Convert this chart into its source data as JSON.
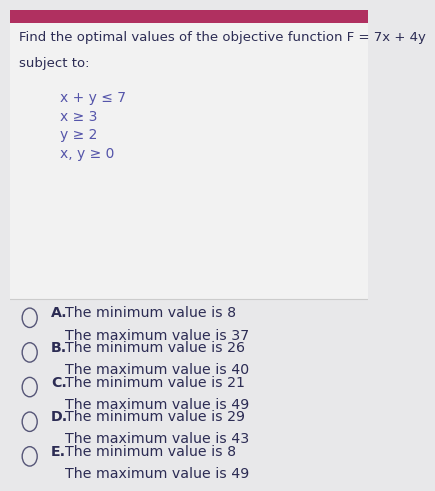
{
  "title_line1": "Find the optimal values of the objective function F = 7x + 4y",
  "title_line2": "subject to:",
  "constraints": [
    "x + y ≤ 7",
    "x ≥ 3",
    "y ≥ 2",
    "x, y ≥ 0"
  ],
  "options": [
    {
      "label": "A.",
      "line1": "The minimum value is 8",
      "line2": "The maximum value is 37"
    },
    {
      "label": "B.",
      "line1": "The minimum value is 26",
      "line2": "The maximum value is 40"
    },
    {
      "label": "C.",
      "line1": "The minimum value is 21",
      "line2": "The maximum value is 49"
    },
    {
      "label": "D.",
      "line1": "The minimum value is 29",
      "line2": "The maximum value is 43"
    },
    {
      "label": "E.",
      "line1": "The minimum value is 8",
      "line2": "The maximum value is 49"
    }
  ],
  "header_color": "#b03060",
  "question_bg": "#f2f2f2",
  "answer_bg": "#e8e8ea",
  "text_color": "#2c2c54",
  "constraint_color": "#5555aa",
  "circle_edge_color": "#555577",
  "divider_color": "#cccccc",
  "title_fontsize": 9.5,
  "constraint_fontsize": 10.0,
  "option_fontsize": 10.2
}
